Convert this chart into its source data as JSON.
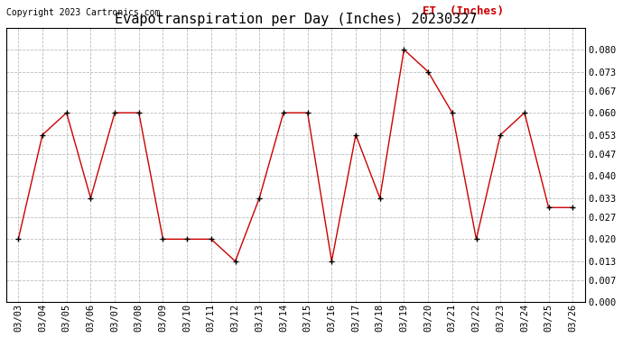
{
  "title": "Evapotranspiration per Day (Inches) 20230327",
  "copyright": "Copyright 2023 Cartronics.com",
  "legend_label": "ET  (Inches)",
  "dates": [
    "03/03",
    "03/04",
    "03/05",
    "03/06",
    "03/07",
    "03/08",
    "03/09",
    "03/10",
    "03/11",
    "03/12",
    "03/13",
    "03/14",
    "03/15",
    "03/16",
    "03/17",
    "03/18",
    "03/19",
    "03/20",
    "03/21",
    "03/22",
    "03/23",
    "03/24",
    "03/25",
    "03/26"
  ],
  "values": [
    0.02,
    0.053,
    0.06,
    0.033,
    0.06,
    0.06,
    0.02,
    0.02,
    0.02,
    0.013,
    0.033,
    0.06,
    0.06,
    0.013,
    0.053,
    0.033,
    0.08,
    0.073,
    0.06,
    0.02,
    0.053,
    0.06,
    0.03,
    0.03
  ],
  "ylim": [
    0.0,
    0.0867
  ],
  "yticks": [
    0.0,
    0.007,
    0.013,
    0.02,
    0.027,
    0.033,
    0.04,
    0.047,
    0.053,
    0.06,
    0.067,
    0.073,
    0.08
  ],
  "line_color": "#cc0000",
  "marker": "+",
  "marker_color": "#000000",
  "bg_color": "#ffffff",
  "grid_color": "#bbbbbb",
  "title_fontsize": 11,
  "copyright_fontsize": 7,
  "tick_fontsize": 7.5,
  "legend_fontsize": 9,
  "border_color": "#000000"
}
